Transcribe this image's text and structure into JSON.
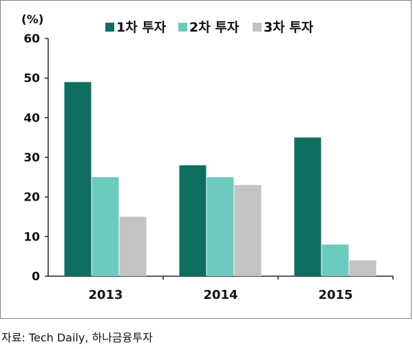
{
  "chart_data": {
    "type": "bar",
    "unit_label": "(%)",
    "categories": [
      "2013",
      "2014",
      "2015"
    ],
    "series": [
      {
        "name": "1차 투자",
        "color": "#0e6f5f",
        "values": [
          49,
          28,
          35
        ]
      },
      {
        "name": "2차 투자",
        "color": "#6ccbbd",
        "values": [
          25,
          25,
          8
        ]
      },
      {
        "name": "3차 투자",
        "color": "#c3c3c3",
        "values": [
          15,
          23,
          4
        ]
      }
    ],
    "ylim": [
      0,
      60
    ],
    "yticks": [
      0,
      10,
      20,
      30,
      40,
      50,
      60
    ],
    "legend_position": "top"
  },
  "source": "자료: Tech Daily, 하나금융투자"
}
